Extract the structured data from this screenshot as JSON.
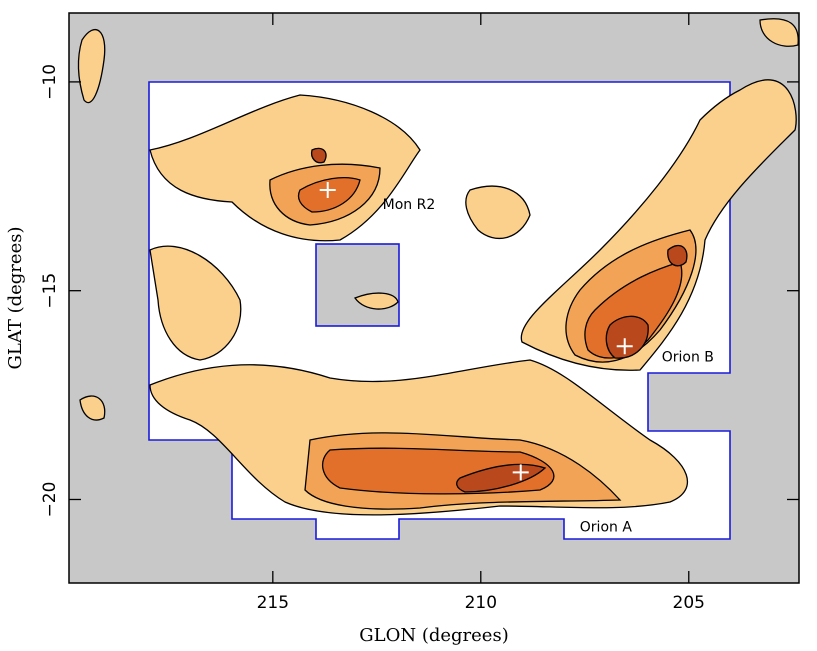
{
  "chart_data": {
    "type": "map",
    "xlabel": "GLON (degrees)",
    "ylabel": "GLAT (degrees)",
    "xlim": [
      219.9,
      202.35
    ],
    "ylim": [
      -22.0,
      -8.35
    ],
    "xticks": [
      215,
      210,
      205
    ],
    "yticks": [
      {
        "value": -10,
        "label": "−10"
      },
      {
        "value": -15,
        "label": "−15"
      },
      {
        "value": -20,
        "label": "−20"
      }
    ],
    "markers": [
      {
        "x": 213.68,
        "y": -12.59
      },
      {
        "x": 206.54,
        "y": -16.33
      },
      {
        "x": 209.04,
        "y": -19.35
      }
    ],
    "annotations": [
      {
        "text": "Mon R2",
        "x": 212.36,
        "y": -12.95
      },
      {
        "text": "Orion B",
        "x": 205.65,
        "y": -16.6
      },
      {
        "text": "Orion A",
        "x": 207.62,
        "y": -20.67
      }
    ]
  }
}
